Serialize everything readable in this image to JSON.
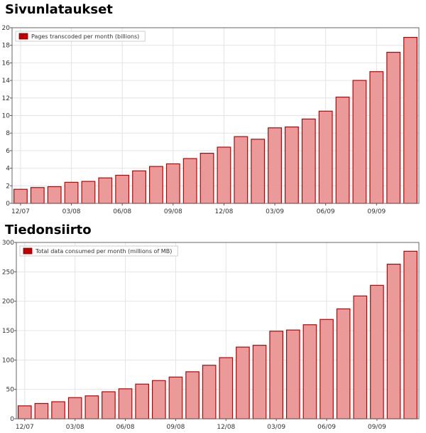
{
  "chart_data": [
    {
      "type": "bar",
      "title": "Sivunlataukset",
      "legend": {
        "label": "Pages transcoded per month (billions)",
        "position": "top-left"
      },
      "ylim": [
        0,
        20
      ],
      "yticks": [
        0,
        2,
        4,
        6,
        8,
        10,
        12,
        14,
        16,
        18,
        20
      ],
      "xtick_labels": [
        "12/07",
        "03/08",
        "06/08",
        "09/08",
        "12/08",
        "03/09",
        "06/09",
        "09/09"
      ],
      "grid": true,
      "colors": {
        "bar_fill": "#eb9a9a",
        "bar_stroke": "#c00000",
        "legend_swatch": "#c00000",
        "grid": "#e4e4e4"
      },
      "values": [
        1.6,
        1.8,
        1.9,
        2.4,
        2.5,
        2.9,
        3.2,
        3.7,
        4.2,
        4.5,
        5.1,
        5.7,
        6.4,
        7.6,
        7.3,
        8.6,
        8.7,
        9.6,
        10.5,
        12.1,
        14.0,
        15.0,
        17.2,
        18.9
      ]
    },
    {
      "type": "bar",
      "title": "Tiedonsiirto",
      "legend": {
        "label": "Total data consumed per month (millions of MB)",
        "position": "top-left"
      },
      "ylim": [
        0,
        300
      ],
      "yticks": [
        0,
        50,
        100,
        150,
        200,
        250,
        300
      ],
      "xtick_labels": [
        "12/07",
        "03/08",
        "06/08",
        "09/08",
        "12/08",
        "03/09",
        "06/09",
        "09/09"
      ],
      "grid": true,
      "colors": {
        "bar_fill": "#eb9a9a",
        "bar_stroke": "#c00000",
        "legend_swatch": "#c00000",
        "grid": "#e4e4e4"
      },
      "values": [
        22,
        26,
        29,
        36,
        39,
        46,
        51,
        59,
        65,
        71,
        80,
        91,
        104,
        122,
        125,
        149,
        151,
        160,
        169,
        187,
        209,
        227,
        263,
        285
      ]
    }
  ]
}
